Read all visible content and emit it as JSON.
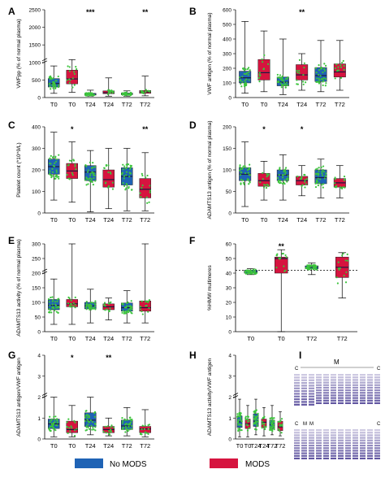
{
  "colors": {
    "no_mods": "#1f63b5",
    "mods": "#d6143f",
    "points": "#3cc43c",
    "median": "#1a1a40"
  },
  "legend": {
    "items": [
      {
        "label": "No MODS",
        "color": "#1f63b5"
      },
      {
        "label": "MODS",
        "color": "#d6143f"
      }
    ]
  },
  "chart_data": [
    {
      "panel": "A",
      "type": "box",
      "ylabel": "VWFpp (% of normal plasma)",
      "yticks": [
        "0",
        "500",
        "1000",
        "1500",
        "2000",
        "2500"
      ],
      "ylim": [
        0,
        2500
      ],
      "y_break_after": 1000,
      "categories": [
        "T0",
        "T0",
        "T24",
        "T24",
        "T72",
        "T72"
      ],
      "groups": [
        "no_mods",
        "mods",
        "no_mods",
        "mods",
        "no_mods",
        "mods"
      ],
      "significance": [
        "",
        "",
        "***",
        "",
        "",
        "**"
      ],
      "boxes": [
        {
          "min": 120,
          "q1": 300,
          "median": 400,
          "q3": 540,
          "max": 900
        },
        {
          "min": 150,
          "q1": 390,
          "median": 530,
          "q3": 780,
          "max": 1080
        },
        {
          "min": 40,
          "q1": 70,
          "median": 90,
          "q3": 120,
          "max": 210
        },
        {
          "min": 40,
          "q1": 110,
          "median": 140,
          "q3": 190,
          "max": 560
        },
        {
          "min": 40,
          "q1": 80,
          "median": 100,
          "q3": 130,
          "max": 190
        },
        {
          "min": 50,
          "q1": 120,
          "median": 160,
          "q3": 200,
          "max": 610
        }
      ]
    },
    {
      "panel": "B",
      "type": "box",
      "ylabel": "VWF antigen (% of normal plasma)",
      "yticks": [
        "0",
        "100",
        "200",
        "300",
        "400",
        "500",
        "600"
      ],
      "ylim": [
        0,
        600
      ],
      "categories": [
        "T0",
        "T0",
        "T24",
        "T24",
        "T72",
        "T72"
      ],
      "groups": [
        "no_mods",
        "mods",
        "no_mods",
        "mods",
        "no_mods",
        "mods"
      ],
      "significance": [
        "",
        "",
        "",
        "**",
        "",
        ""
      ],
      "boxes": [
        {
          "min": 30,
          "q1": 100,
          "median": 135,
          "q3": 180,
          "max": 520
        },
        {
          "min": 40,
          "q1": 120,
          "median": 170,
          "q3": 260,
          "max": 455
        },
        {
          "min": 20,
          "q1": 80,
          "median": 105,
          "q3": 140,
          "max": 400
        },
        {
          "min": 50,
          "q1": 120,
          "median": 155,
          "q3": 225,
          "max": 300
        },
        {
          "min": 40,
          "q1": 110,
          "median": 150,
          "q3": 205,
          "max": 390
        },
        {
          "min": 50,
          "q1": 140,
          "median": 175,
          "q3": 230,
          "max": 390
        }
      ]
    },
    {
      "panel": "C",
      "type": "box",
      "ylabel": "Platelet count (*10^9/L)",
      "yticks": [
        "0",
        "100",
        "200",
        "300",
        "400"
      ],
      "ylim": [
        0,
        400
      ],
      "categories": [
        "T0",
        "T0",
        "T24",
        "T24",
        "T72",
        "T72"
      ],
      "groups": [
        "no_mods",
        "mods",
        "no_mods",
        "mods",
        "no_mods",
        "mods"
      ],
      "significance": [
        "",
        "*",
        "",
        "",
        "",
        "**"
      ],
      "boxes": [
        {
          "min": 60,
          "q1": 180,
          "median": 215,
          "q3": 250,
          "max": 375
        },
        {
          "min": 50,
          "q1": 160,
          "median": 195,
          "q3": 230,
          "max": 330
        },
        {
          "min": 5,
          "q1": 150,
          "median": 190,
          "q3": 220,
          "max": 290
        },
        {
          "min": 20,
          "q1": 120,
          "median": 155,
          "q3": 200,
          "max": 300
        },
        {
          "min": 10,
          "q1": 130,
          "median": 170,
          "q3": 210,
          "max": 300
        },
        {
          "min": 10,
          "q1": 70,
          "median": 110,
          "q3": 160,
          "max": 280
        }
      ]
    },
    {
      "panel": "D",
      "type": "box",
      "ylabel": "ADAMTS13 antigen (% of normal plasma)",
      "yticks": [
        "0",
        "50",
        "100",
        "150",
        "200"
      ],
      "ylim": [
        0,
        200
      ],
      "categories": [
        "T0",
        "T0",
        "T24",
        "T24",
        "T72",
        "T72"
      ],
      "groups": [
        "no_mods",
        "mods",
        "no_mods",
        "mods",
        "no_mods",
        "mods"
      ],
      "significance": [
        "",
        "*",
        "",
        "*",
        "",
        ""
      ],
      "boxes": [
        {
          "min": 15,
          "q1": 75,
          "median": 90,
          "q3": 105,
          "max": 165
        },
        {
          "min": 30,
          "q1": 62,
          "median": 75,
          "q3": 92,
          "max": 120
        },
        {
          "min": 30,
          "q1": 75,
          "median": 88,
          "q3": 100,
          "max": 135
        },
        {
          "min": 40,
          "q1": 65,
          "median": 75,
          "q3": 85,
          "max": 110
        },
        {
          "min": 35,
          "q1": 68,
          "median": 82,
          "q3": 100,
          "max": 125
        },
        {
          "min": 35,
          "q1": 60,
          "median": 70,
          "q3": 80,
          "max": 110
        }
      ]
    },
    {
      "panel": "E",
      "type": "box",
      "ylabel": "ADAMTS13 activity (% of normal plasma)",
      "yticks": [
        "0",
        "50",
        "100",
        "150",
        "200",
        "250",
        "300"
      ],
      "ylim": [
        0,
        300
      ],
      "y_break_after": 200,
      "categories": [
        "T0",
        "T0",
        "T24",
        "T24",
        "T72",
        "T72"
      ],
      "groups": [
        "no_mods",
        "mods",
        "no_mods",
        "mods",
        "no_mods",
        "mods"
      ],
      "significance": [
        "",
        "",
        "",
        "",
        "",
        ""
      ],
      "boxes": [
        {
          "min": 25,
          "q1": 75,
          "median": 90,
          "q3": 110,
          "max": 180
        },
        {
          "min": 25,
          "q1": 85,
          "median": 95,
          "q3": 110,
          "max": 300
        },
        {
          "min": 30,
          "q1": 78,
          "median": 88,
          "q3": 100,
          "max": 145
        },
        {
          "min": 40,
          "q1": 75,
          "median": 85,
          "q3": 95,
          "max": 115
        },
        {
          "min": 30,
          "q1": 70,
          "median": 82,
          "q3": 98,
          "max": 140
        },
        {
          "min": 30,
          "q1": 70,
          "median": 82,
          "q3": 105,
          "max": 300
        }
      ]
    },
    {
      "panel": "F",
      "type": "box",
      "ylabel": "%HMW multimeres",
      "yticks": [
        "0",
        "10",
        "20",
        "30",
        "40",
        "50",
        "60"
      ],
      "ylim": [
        0,
        60
      ],
      "reference_line": 42,
      "categories": [
        "T0",
        "T0",
        "T72",
        "T72"
      ],
      "groups": [
        "no_mods",
        "mods",
        "no_mods",
        "mods"
      ],
      "significance": [
        "",
        "**",
        "",
        ""
      ],
      "boxes": [
        {
          "min": 39,
          "q1": 40,
          "median": 41,
          "q3": 42,
          "max": 43
        },
        {
          "min": 0,
          "q1": 40,
          "median": 50,
          "q3": 51,
          "max": 56
        },
        {
          "min": 39,
          "q1": 43,
          "median": 44,
          "q3": 45,
          "max": 47
        },
        {
          "min": 23,
          "q1": 37,
          "median": 44,
          "q3": 51,
          "max": 54
        }
      ]
    },
    {
      "panel": "G",
      "type": "box",
      "ylabel": "ADAMTS13 antigen/VWF antigen",
      "yticks": [
        "0",
        "1",
        "2",
        "3",
        "4"
      ],
      "ylim": [
        0,
        4
      ],
      "y_break_after": 2,
      "categories": [
        "T0",
        "T0",
        "T24",
        "T24",
        "T72",
        "T72"
      ],
      "groups": [
        "no_mods",
        "mods",
        "no_mods",
        "mods",
        "no_mods",
        "mods"
      ],
      "significance": [
        "",
        "*",
        "",
        "**",
        "",
        ""
      ],
      "boxes": [
        {
          "min": 0.1,
          "q1": 0.5,
          "median": 0.72,
          "q3": 0.95,
          "max": 2.0
        },
        {
          "min": 0.1,
          "q1": 0.3,
          "median": 0.45,
          "q3": 0.85,
          "max": 1.6
        },
        {
          "min": 0.2,
          "q1": 0.6,
          "median": 0.9,
          "q3": 1.25,
          "max": 2.0
        },
        {
          "min": 0.15,
          "q1": 0.3,
          "median": 0.45,
          "q3": 0.6,
          "max": 1.0
        },
        {
          "min": 0.15,
          "q1": 0.45,
          "median": 0.62,
          "q3": 0.9,
          "max": 1.5
        },
        {
          "min": 0.1,
          "q1": 0.3,
          "median": 0.48,
          "q3": 0.6,
          "max": 1.4
        }
      ]
    },
    {
      "panel": "H",
      "type": "box",
      "ylabel": "ADAMTS13 activity/VWF antigen",
      "yticks": [
        "0",
        "1",
        "2",
        "3",
        "4"
      ],
      "ylim": [
        0,
        4
      ],
      "y_break_after": 2,
      "categories": [
        "T0",
        "T0",
        "T24",
        "T24",
        "T72",
        "T72"
      ],
      "groups": [
        "no_mods",
        "mods",
        "no_mods",
        "mods",
        "no_mods",
        "mods"
      ],
      "significance": [
        "",
        "",
        "",
        "",
        "",
        ""
      ],
      "boxes": [
        {
          "min": 0.1,
          "q1": 0.55,
          "median": 0.82,
          "q3": 1.1,
          "max": 1.9
        },
        {
          "min": 0.1,
          "q1": 0.5,
          "median": 0.72,
          "q3": 0.95,
          "max": 1.6
        },
        {
          "min": 0.2,
          "q1": 0.6,
          "median": 0.85,
          "q3": 1.2,
          "max": 1.9
        },
        {
          "min": 0.15,
          "q1": 0.55,
          "median": 0.8,
          "q3": 0.95,
          "max": 1.5
        },
        {
          "min": 0.2,
          "q1": 0.5,
          "median": 0.68,
          "q3": 0.9,
          "max": 1.6
        },
        {
          "min": 0.15,
          "q1": 0.4,
          "median": 0.58,
          "q3": 0.85,
          "max": 1.3
        }
      ]
    }
  ],
  "gel": {
    "panel": "I",
    "labels": [
      "C",
      "M",
      "C",
      "C",
      "M",
      "M",
      "C"
    ]
  }
}
